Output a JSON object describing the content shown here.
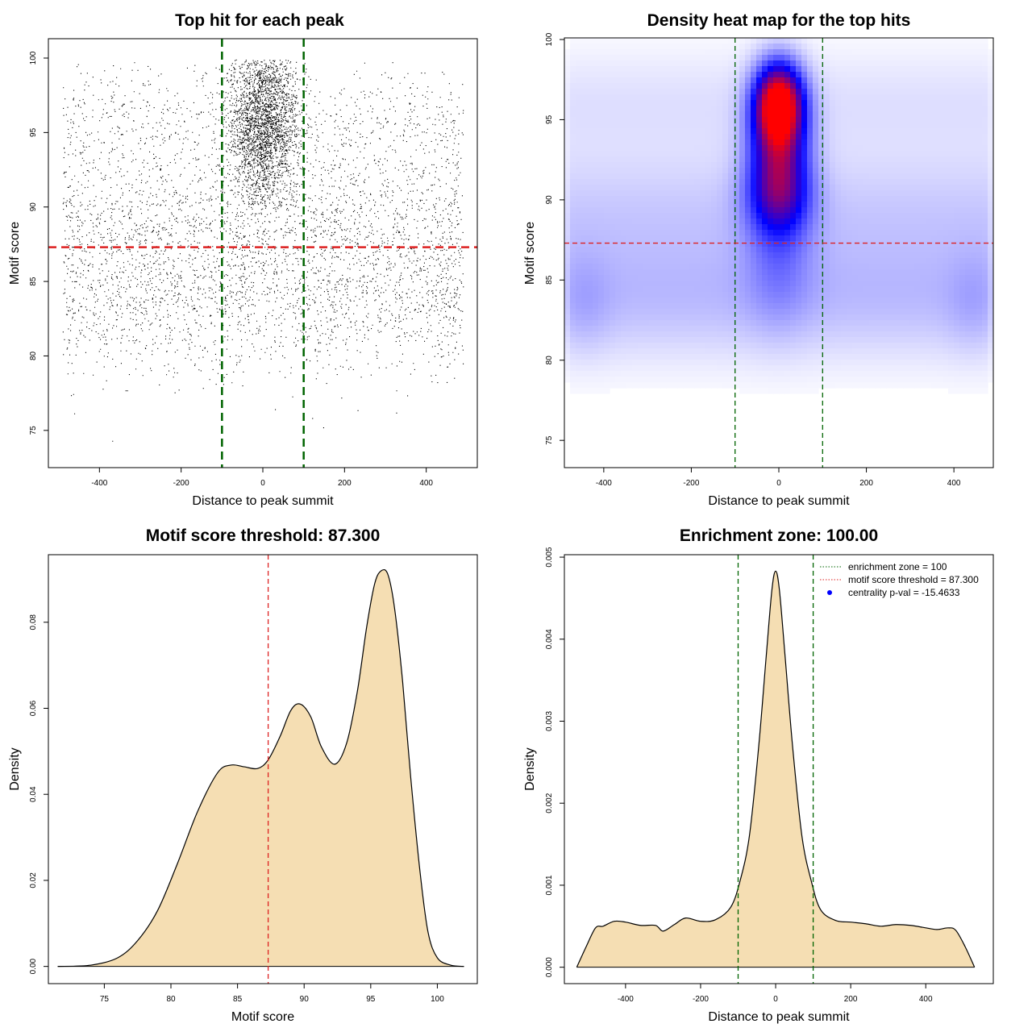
{
  "chart_data": [
    {
      "id": "scatter",
      "type": "scatter",
      "title": "Top hit for each peak",
      "xlabel": "Distance to peak summit",
      "ylabel": "Motif score",
      "xlim": [
        -525,
        525
      ],
      "ylim": [
        72.5,
        101.3
      ],
      "xticks": [
        -400,
        -200,
        0,
        200,
        400
      ],
      "yticks": [
        75,
        80,
        85,
        90,
        95,
        100
      ],
      "vlines": [
        -100,
        100
      ],
      "hline": 87.3,
      "distribution": {
        "background": {
          "n": 7000,
          "x_range": [
            -490,
            490
          ]
        },
        "central": {
          "n": 3500,
          "x_center": 0,
          "x_sd": 42,
          "y_center": 95.6,
          "y_sd": 2.5
        }
      }
    },
    {
      "id": "heatmap",
      "type": "heatmap",
      "title": "Density heat map for the top hits",
      "xlabel": "Distance to peak summit",
      "ylabel": "Motif score",
      "xlim": [
        -490,
        490
      ],
      "ylim": [
        73.3,
        100.1
      ],
      "xticks": [
        -400,
        -200,
        0,
        200,
        400
      ],
      "yticks": [
        75,
        80,
        85,
        90,
        95,
        100
      ],
      "vlines": [
        -100,
        100
      ],
      "hline": 87.3,
      "peak": {
        "x": 0,
        "y": 96.1
      },
      "palette": [
        "#ffffff",
        "#0000ff",
        "#ff0000"
      ]
    },
    {
      "id": "score-density",
      "type": "area",
      "title": "Motif score threshold: 87.300",
      "xlabel": "Motif score",
      "ylabel": "Density",
      "xlim": [
        70.8,
        103.0
      ],
      "ylim": [
        -0.004,
        0.0957
      ],
      "xticks": [
        75,
        80,
        85,
        90,
        95,
        100
      ],
      "yticks": [
        0.0,
        0.02,
        0.04,
        0.06,
        0.08
      ],
      "vline": 87.3,
      "x": [
        71.5,
        74,
        76,
        77.5,
        79,
        80.5,
        82,
        83.5,
        84.5,
        85.5,
        86.5,
        87.3,
        88.2,
        89,
        89.7,
        90.5,
        91.3,
        92.3,
        93.2,
        94,
        94.7,
        95.3,
        95.8,
        96.3,
        96.8,
        97.4,
        98,
        98.7,
        99.3,
        100,
        101,
        102
      ],
      "y": [
        0.0,
        0.0003,
        0.002,
        0.006,
        0.013,
        0.024,
        0.036,
        0.045,
        0.0468,
        0.0464,
        0.046,
        0.048,
        0.0535,
        0.0595,
        0.061,
        0.058,
        0.051,
        0.047,
        0.052,
        0.064,
        0.079,
        0.089,
        0.092,
        0.091,
        0.083,
        0.066,
        0.044,
        0.022,
        0.008,
        0.002,
        0.0003,
        0.0
      ],
      "fill": "#f5deb3"
    },
    {
      "id": "distance-density",
      "type": "area",
      "title": "Enrichment zone: 100.00",
      "xlabel": "Distance to peak summit",
      "ylabel": "Density",
      "xlim": [
        -563,
        580
      ],
      "ylim": [
        -0.0002,
        0.00503
      ],
      "xticks": [
        -400,
        -200,
        0,
        200,
        400
      ],
      "yticks": [
        0.0,
        0.001,
        0.002,
        0.003,
        0.004,
        0.005
      ],
      "vlines": [
        -100,
        100
      ],
      "x": [
        -530,
        -505,
        -480,
        -460,
        -430,
        -400,
        -360,
        -320,
        -300,
        -270,
        -240,
        -200,
        -160,
        -120,
        -95,
        -70,
        -45,
        -25,
        -10,
        0,
        10,
        25,
        45,
        70,
        95,
        120,
        160,
        200,
        240,
        280,
        320,
        360,
        400,
        430,
        460,
        480,
        505,
        530
      ],
      "y": [
        0.0,
        0.00025,
        0.00048,
        0.0005,
        0.00056,
        0.00055,
        0.00051,
        0.00051,
        0.00044,
        0.00052,
        0.0006,
        0.00056,
        0.00058,
        0.00073,
        0.00105,
        0.0016,
        0.0027,
        0.0038,
        0.0046,
        0.00483,
        0.0046,
        0.0038,
        0.0027,
        0.0016,
        0.00105,
        0.0007,
        0.00057,
        0.00055,
        0.00053,
        0.0005,
        0.00052,
        0.00051,
        0.00048,
        0.00046,
        0.00048,
        0.00045,
        0.00025,
        0.0
      ],
      "fill": "#f5deb3",
      "legend": [
        {
          "label": "enrichment zone = 100",
          "style": "dotted-green"
        },
        {
          "label": "motif score threshold = 87.300",
          "style": "dotted-red"
        },
        {
          "label": "centrality p-val = -15.4633",
          "style": "blue-dot"
        }
      ]
    }
  ],
  "colors": {
    "green_line": "#006400",
    "red_line": "#dd2222",
    "blue_dot": "#0000ff",
    "density_fill": "#f5deb3",
    "point": "#000000"
  }
}
